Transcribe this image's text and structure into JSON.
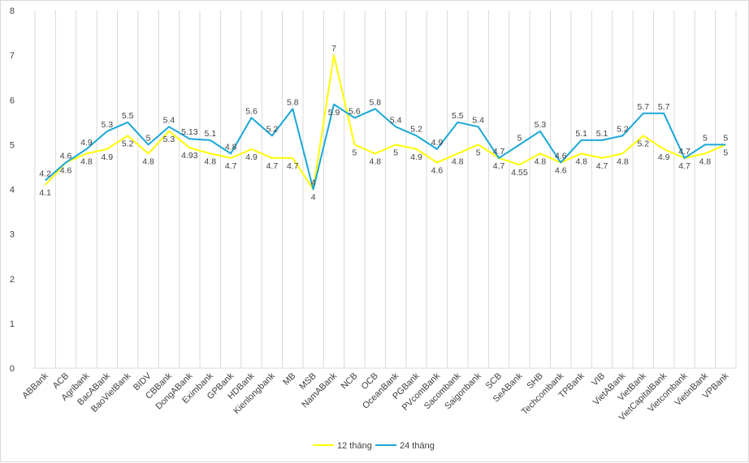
{
  "chart_data": {
    "type": "line",
    "title": "",
    "xlabel": "",
    "ylabel": "",
    "ylim": [
      0,
      8
    ],
    "yticks": [
      0,
      1,
      2,
      3,
      4,
      5,
      6,
      7,
      8
    ],
    "grid": "vertical category gridlines",
    "legend_position": "bottom",
    "categories": [
      "ABBank",
      "ACB",
      "Agribank",
      "BacABank",
      "BaoVietBank",
      "BIDV",
      "CBBank",
      "DongABank",
      "Eximbank",
      "GPBank",
      "HDBank",
      "Kienlongbank",
      "MB",
      "MSB",
      "NamABank",
      "NCB",
      "OCB",
      "OceanBank",
      "PGBank",
      "PVcomBank",
      "Sacombank",
      "Saigonbank",
      "SCB",
      "SeABank",
      "SHB",
      "Techcombank",
      "TPBank",
      "VIB",
      "VietABank",
      "VietBank",
      "VietCapitalBank",
      "Vietcombank",
      "VietinBank",
      "VPBank"
    ],
    "series": [
      {
        "name": "12 tháng",
        "color": "#ffff00",
        "values": [
          4.1,
          4.6,
          4.8,
          4.9,
          5.2,
          4.8,
          5.3,
          4.93,
          4.8,
          4.7,
          4.9,
          4.7,
          4.7,
          4,
          7,
          5,
          4.8,
          5,
          4.9,
          4.6,
          4.8,
          5,
          4.7,
          4.55,
          4.8,
          4.6,
          4.8,
          4.7,
          4.8,
          5.2,
          4.9,
          4.7,
          4.8,
          5
        ]
      },
      {
        "name": "24 tháng",
        "color": "#1aa7d8",
        "values": [
          4.2,
          4.6,
          4.9,
          5.3,
          5.5,
          5,
          5.4,
          5.13,
          5.1,
          4.8,
          5.6,
          5.2,
          5.8,
          4,
          5.9,
          5.6,
          5.8,
          5.4,
          5.2,
          4.9,
          5.5,
          5.4,
          4.7,
          5,
          5.3,
          4.6,
          5.1,
          5.1,
          5.2,
          5.7,
          5.7,
          4.7,
          5,
          5
        ]
      }
    ]
  }
}
